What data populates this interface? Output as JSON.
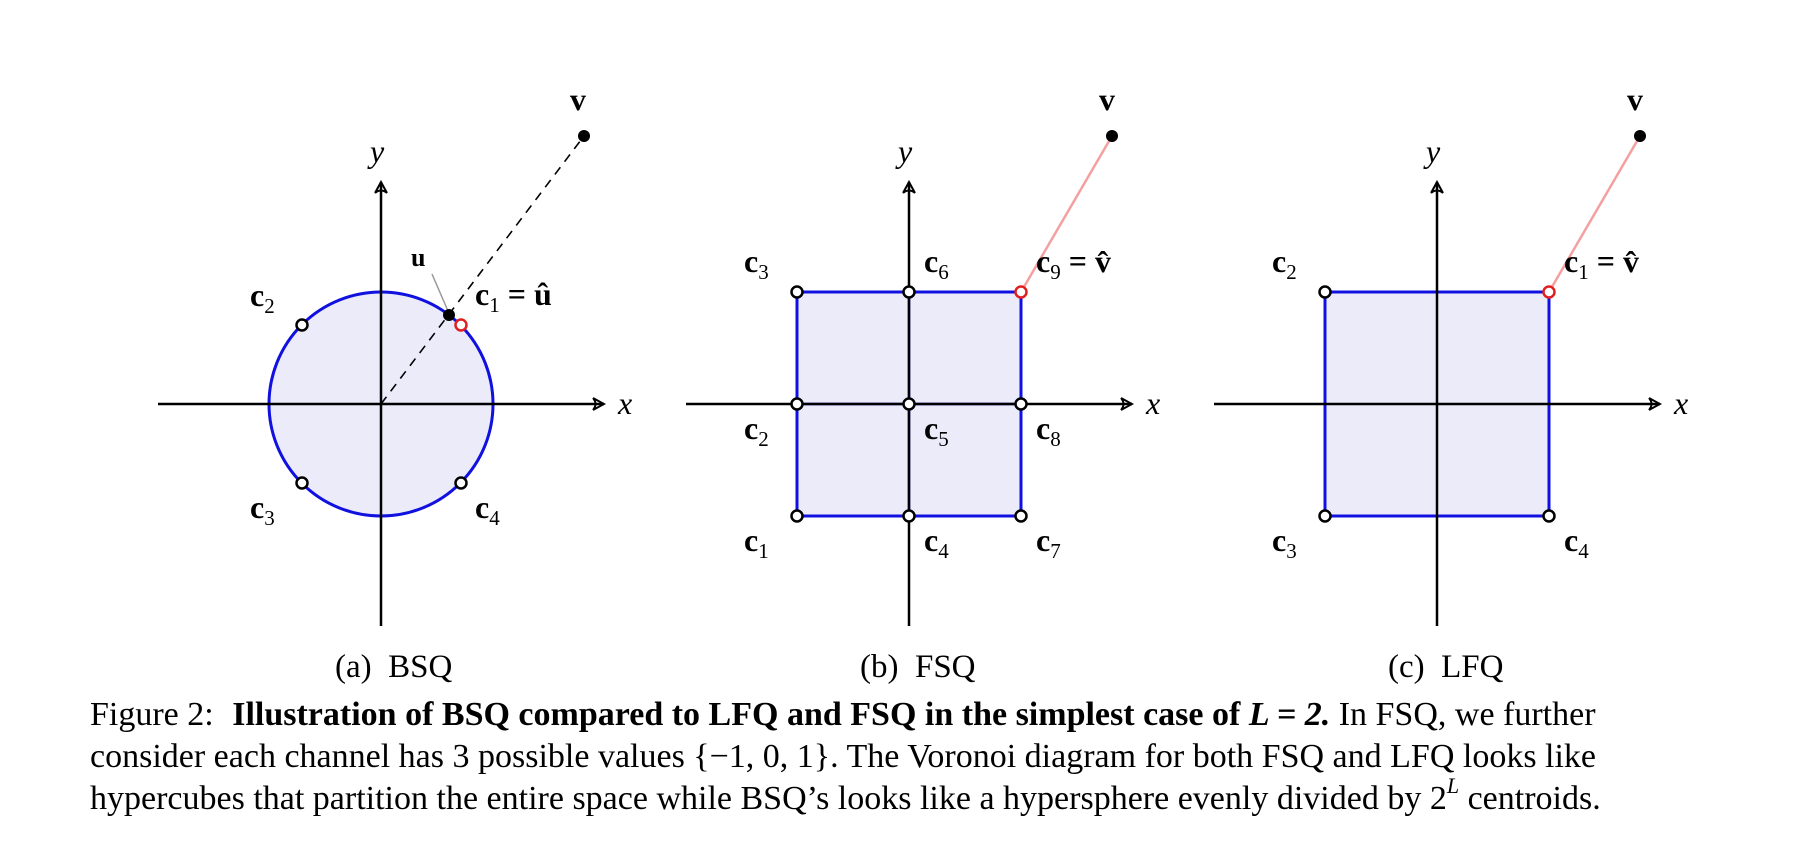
{
  "panels": [
    {
      "subcaption": "(a)  BSQ",
      "shape": "circle",
      "axis_x": "x",
      "axis_y": "y",
      "vector_label": "v",
      "u_label": "u",
      "centroids": [
        {
          "label": "c",
          "sub": "1",
          "suffix": " = û"
        },
        {
          "label": "c",
          "sub": "2",
          "suffix": ""
        },
        {
          "label": "c",
          "sub": "3",
          "suffix": ""
        },
        {
          "label": "c",
          "sub": "4",
          "suffix": ""
        }
      ]
    },
    {
      "subcaption": "(b)  FSQ",
      "shape": "square-grid",
      "axis_x": "x",
      "axis_y": "y",
      "vector_label": "v",
      "centroids": [
        {
          "label": "c",
          "sub": "1",
          "suffix": ""
        },
        {
          "label": "c",
          "sub": "2",
          "suffix": ""
        },
        {
          "label": "c",
          "sub": "3",
          "suffix": ""
        },
        {
          "label": "c",
          "sub": "4",
          "suffix": ""
        },
        {
          "label": "c",
          "sub": "5",
          "suffix": ""
        },
        {
          "label": "c",
          "sub": "6",
          "suffix": ""
        },
        {
          "label": "c",
          "sub": "7",
          "suffix": ""
        },
        {
          "label": "c",
          "sub": "8",
          "suffix": ""
        },
        {
          "label": "c",
          "sub": "9",
          "suffix": " = v̂"
        }
      ]
    },
    {
      "subcaption": "(c)  LFQ",
      "shape": "square",
      "axis_x": "x",
      "axis_y": "y",
      "vector_label": "v",
      "centroids": [
        {
          "label": "c",
          "sub": "1",
          "suffix": " = v̂"
        },
        {
          "label": "c",
          "sub": "2",
          "suffix": ""
        },
        {
          "label": "c",
          "sub": "3",
          "suffix": ""
        },
        {
          "label": "c",
          "sub": "4",
          "suffix": ""
        }
      ]
    }
  ],
  "caption": {
    "label": "Figure 2:",
    "bold_part": "Illustration of BSQ compared to LFQ and FSQ in the simplest case of",
    "bold_math": "L = 2.",
    "line1_rest": "In FSQ, we further",
    "line2": "consider each channel has 3 possible values {−1, 0, 1}. The Voronoi diagram for both FSQ and LFQ looks like",
    "line3_pre": "hypercubes that partition the entire space while BSQ’s looks like a hypersphere evenly divided by 2",
    "line3_sup": "L",
    "line3_post": " centroids."
  },
  "colors": {
    "region_fill": "#ebebfa",
    "boundary": "#1010e0",
    "selected_centroid": "#e02020",
    "projection_line": "#f4a0a0"
  }
}
